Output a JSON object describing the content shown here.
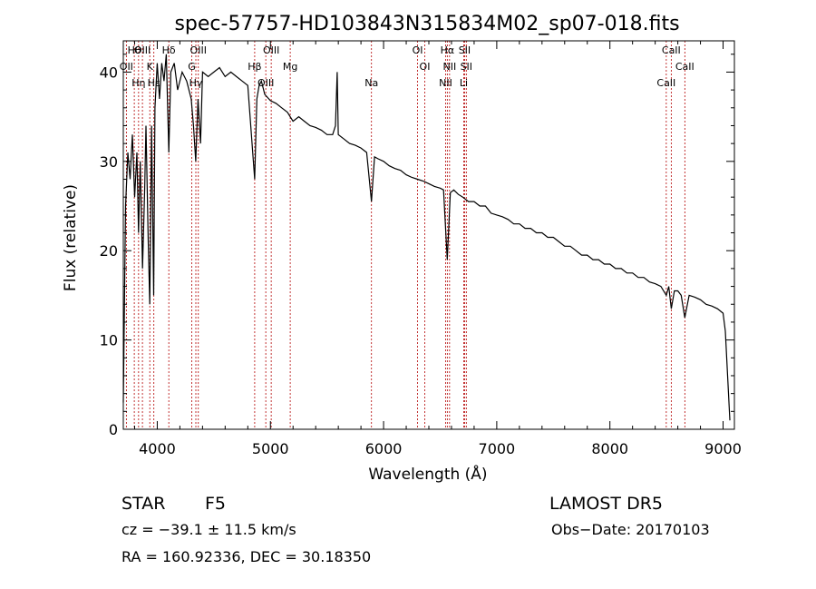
{
  "chart_data": {
    "type": "line",
    "title": "spec-57757-HD103843N315834M02_sp07-018.fits",
    "xlabel": "Wavelength (Å)",
    "ylabel": "Flux (relative)",
    "xlim": [
      3700,
      9100
    ],
    "ylim": [
      0,
      43.5
    ],
    "grid": false,
    "x_ticks": [
      4000,
      5000,
      6000,
      7000,
      8000,
      9000
    ],
    "y_ticks": [
      0,
      10,
      20,
      30,
      40
    ],
    "series": [
      {
        "x": [
          3700,
          3720,
          3740,
          3760,
          3780,
          3800,
          3820,
          3835,
          3850,
          3870,
          3889,
          3900,
          3920,
          3934,
          3950,
          3968,
          3980,
          4000,
          4020,
          4040,
          4060,
          4080,
          4102,
          4120,
          4150,
          4180,
          4220,
          4260,
          4300,
          4320,
          4340,
          4360,
          4383,
          4400,
          4450,
          4500,
          4550,
          4600,
          4650,
          4700,
          4750,
          4800,
          4861,
          4880,
          4900,
          4920,
          4950,
          5000,
          5050,
          5100,
          5150,
          5200,
          5250,
          5300,
          5350,
          5400,
          5450,
          5500,
          5550,
          5575,
          5590,
          5600,
          5650,
          5700,
          5750,
          5800,
          5850,
          5893,
          5920,
          5950,
          6000,
          6050,
          6100,
          6150,
          6200,
          6250,
          6300,
          6350,
          6400,
          6450,
          6500,
          6530,
          6563,
          6590,
          6620,
          6660,
          6700,
          6750,
          6800,
          6850,
          6900,
          6950,
          7000,
          7050,
          7100,
          7150,
          7200,
          7250,
          7300,
          7350,
          7400,
          7450,
          7500,
          7550,
          7600,
          7650,
          7700,
          7750,
          7800,
          7850,
          7900,
          7950,
          8000,
          8050,
          8100,
          8150,
          8200,
          8250,
          8300,
          8350,
          8400,
          8450,
          8498,
          8520,
          8542,
          8570,
          8600,
          8630,
          8662,
          8700,
          8750,
          8800,
          8850,
          8900,
          8950,
          9000,
          9020,
          9040,
          9060
        ],
        "y": [
          3,
          25,
          31,
          28,
          33,
          26,
          31,
          22,
          30,
          18,
          27,
          34,
          21,
          14,
          34,
          15,
          36,
          41,
          37,
          41,
          39,
          42,
          31,
          40,
          41,
          38,
          40,
          39,
          37,
          34,
          30,
          37,
          32,
          40,
          39.5,
          40,
          40.5,
          39.5,
          40,
          39.5,
          39,
          38.5,
          28,
          37,
          38.5,
          39,
          37.5,
          36.8,
          36.5,
          36,
          35.5,
          34.5,
          35,
          34.5,
          34,
          33.8,
          33.5,
          33,
          33,
          34,
          40,
          33,
          32.5,
          32,
          31.8,
          31.5,
          31,
          25.5,
          30.5,
          30.3,
          30,
          29.5,
          29.2,
          29,
          28.5,
          28.2,
          28,
          27.8,
          27.5,
          27.2,
          27,
          26.8,
          19,
          26.5,
          26.8,
          26.3,
          26,
          25.5,
          25.5,
          25,
          25,
          24.2,
          24,
          23.8,
          23.5,
          23,
          23,
          22.5,
          22.5,
          22,
          22,
          21.5,
          21.5,
          21,
          20.5,
          20.5,
          20,
          19.5,
          19.5,
          19,
          19,
          18.5,
          18.5,
          18,
          18,
          17.5,
          17.5,
          17,
          17,
          16.5,
          16.3,
          16,
          15,
          16,
          13.5,
          15.5,
          15.5,
          15,
          12.5,
          15,
          14.8,
          14.5,
          14,
          13.8,
          13.5,
          13,
          11,
          6,
          1
        ]
      }
    ],
    "lines": [
      {
        "label": "Hθ",
        "wl": 3797
      },
      {
        "label": "OII",
        "wl": 3727
      },
      {
        "label": "Hη",
        "wl": 3835
      },
      {
        "label": "OIII",
        "wl": 3869
      },
      {
        "label": "K",
        "wl": 3934
      },
      {
        "label": "Hε",
        "wl": 3970
      },
      {
        "label": "Hδ",
        "wl": 4102
      },
      {
        "label": "G",
        "wl": 4305
      },
      {
        "label": "Hγ",
        "wl": 4341
      },
      {
        "label": "OIII",
        "wl": 4363
      },
      {
        "label": "Hβ",
        "wl": 4861
      },
      {
        "label": "OIII",
        "wl": 4959
      },
      {
        "label": "OIII",
        "wl": 5007
      },
      {
        "label": "Mg",
        "wl": 5175
      },
      {
        "label": "Na",
        "wl": 5893
      },
      {
        "label": "OI",
        "wl": 6300
      },
      {
        "label": "OI",
        "wl": 6364
      },
      {
        "label": "NII",
        "wl": 6548
      },
      {
        "label": "Hα",
        "wl": 6563
      },
      {
        "label": "NII",
        "wl": 6583
      },
      {
        "label": "Li",
        "wl": 6708
      },
      {
        "label": "SII",
        "wl": 6716
      },
      {
        "label": "SII",
        "wl": 6731
      },
      {
        "label": "CaII",
        "wl": 8498
      },
      {
        "label": "CaII",
        "wl": 8542
      },
      {
        "label": "CaII",
        "wl": 8662
      }
    ]
  },
  "info": {
    "class_label": "STAR",
    "subclass": "F5",
    "survey": "LAMOST DR5",
    "cz": "cz = −39.1 ± 11.5 km/s",
    "obs_date": "Obs−Date: 20170103",
    "coords": "RA = 160.92336, DEC =  30.18350"
  }
}
